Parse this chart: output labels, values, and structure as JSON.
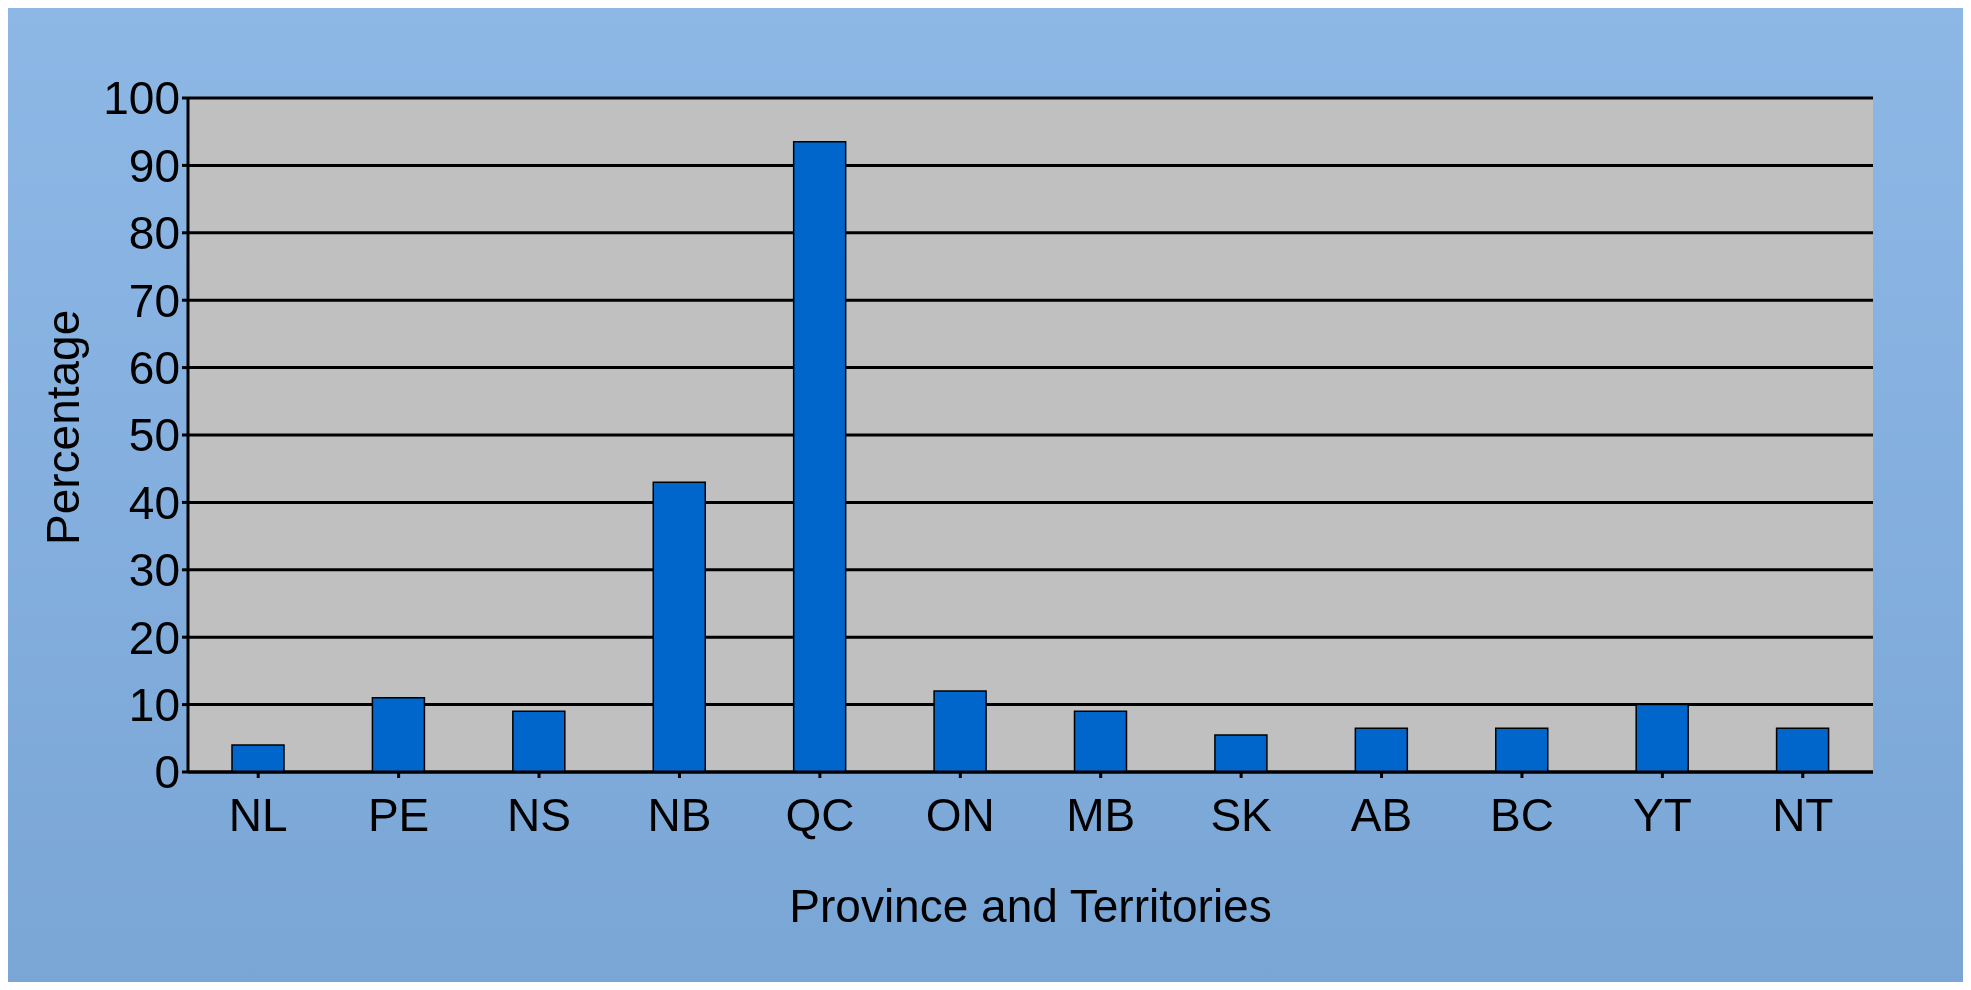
{
  "chart_data": {
    "type": "bar",
    "xlabel": "Province and Territories",
    "ylabel": "Percentage",
    "categories": [
      "NL",
      "PE",
      "NS",
      "NB",
      "QC",
      "ON",
      "MB",
      "SK",
      "AB",
      "BC",
      "YT",
      "NT"
    ],
    "values": [
      4,
      11,
      9,
      43,
      93.5,
      12,
      9,
      5.5,
      6.5,
      6.5,
      10,
      6.5
    ],
    "color": "#0066cc",
    "ylim": [
      0,
      100
    ],
    "yticks": [
      0,
      10,
      20,
      30,
      40,
      50,
      60,
      70,
      80,
      90,
      100
    ],
    "grid": "y"
  }
}
